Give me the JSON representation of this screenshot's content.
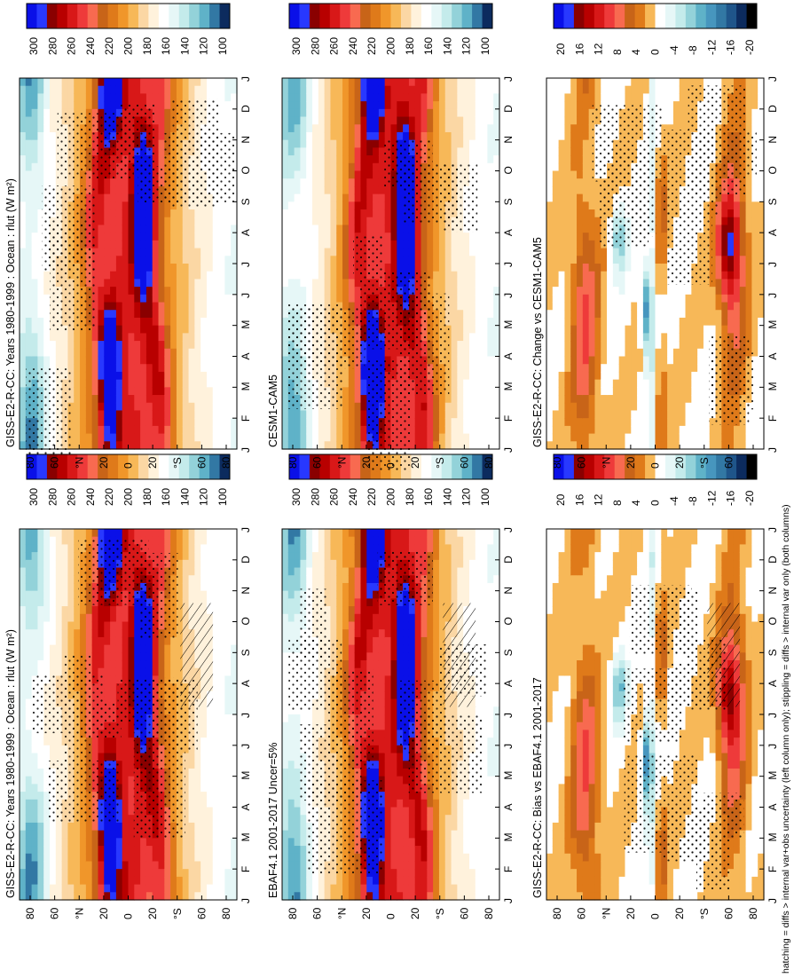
{
  "figure": {
    "footnote": "hatching = diffs > internal var+obs uncertainty (left column only); stippling = diffs > internal var only (both columns)"
  },
  "chart_data": [
    {
      "id": "p1",
      "type": "heatmap",
      "title": "GISS-E2-R-CC: Years 1980-1999 : Ocean : rlut (W m²)",
      "month_ticks": [
        "J",
        "F",
        "M",
        "A",
        "M",
        "J",
        "J",
        "A",
        "S",
        "O",
        "N",
        "D",
        "J"
      ],
      "lat_ticks": [
        "80",
        "60",
        "°N",
        "20",
        "0",
        "20",
        "°S",
        "60",
        "80"
      ],
      "lat_range": [
        -90,
        90
      ],
      "colorbar_labels": [
        "300",
        "280",
        "260",
        "240",
        "220",
        "200",
        "180",
        "160",
        "140",
        "120",
        "100"
      ],
      "pattern": "abs",
      "seed": 1,
      "hatch": true
    },
    {
      "id": "p2",
      "type": "heatmap",
      "title": "GISS-E2-R-CC: Years 1980-1999 : Ocean : rlut (W m²)",
      "month_ticks": [
        "J",
        "F",
        "M",
        "A",
        "M",
        "J",
        "J",
        "A",
        "S",
        "O",
        "N",
        "D",
        "J"
      ],
      "lat_ticks": [
        "80",
        "60",
        "°N",
        "20",
        "0",
        "20",
        "°S",
        "60",
        "80"
      ],
      "lat_range": [
        -90,
        90
      ],
      "colorbar_labels": [
        "300",
        "280",
        "260",
        "240",
        "220",
        "200",
        "180",
        "160",
        "140",
        "120",
        "100"
      ],
      "pattern": "abs",
      "seed": 2,
      "hatch": false
    },
    {
      "id": "p3",
      "type": "heatmap",
      "title": "EBAF4.1 2001-2017 Uncer=5%",
      "month_ticks": [
        "J",
        "F",
        "M",
        "A",
        "M",
        "J",
        "J",
        "A",
        "S",
        "O",
        "N",
        "D",
        "J"
      ],
      "lat_ticks": [
        "80",
        "60",
        "°N",
        "20",
        "0",
        "20",
        "°S",
        "60",
        "80"
      ],
      "lat_range": [
        -90,
        90
      ],
      "colorbar_labels": [
        "300",
        "280",
        "260",
        "240",
        "220",
        "200",
        "180",
        "160",
        "140",
        "120",
        "100"
      ],
      "pattern": "abs",
      "seed": 3,
      "hatch": true
    },
    {
      "id": "p4",
      "type": "heatmap",
      "title": "CESM1-CAM5",
      "month_ticks": [
        "J",
        "F",
        "M",
        "A",
        "M",
        "J",
        "J",
        "A",
        "S",
        "O",
        "N",
        "D",
        "J"
      ],
      "lat_ticks": [
        "80",
        "60",
        "°N",
        "20",
        "0",
        "20",
        "°S",
        "60",
        "80"
      ],
      "lat_range": [
        -90,
        90
      ],
      "colorbar_labels": [
        "300",
        "280",
        "260",
        "240",
        "220",
        "200",
        "180",
        "160",
        "140",
        "120",
        "100"
      ],
      "pattern": "abs",
      "seed": 4,
      "hatch": false
    },
    {
      "id": "p5",
      "type": "heatmap",
      "title": "GISS-E2-R-CC: Bias vs EBAF4.1 2001-2017",
      "month_ticks": [
        "J",
        "F",
        "M",
        "A",
        "M",
        "J",
        "J",
        "A",
        "S",
        "O",
        "N",
        "D",
        "J"
      ],
      "lat_ticks": [
        "80",
        "60",
        "°N",
        "20",
        "0",
        "20",
        "°S",
        "60",
        "80"
      ],
      "lat_range": [
        -90,
        90
      ],
      "colorbar_labels": [
        "20",
        "16",
        "12",
        "8",
        "4",
        "0",
        "-4",
        "-8",
        "-12",
        "-16",
        "-20"
      ],
      "pattern": "diff",
      "seed": 5,
      "hatch": true
    },
    {
      "id": "p6",
      "type": "heatmap",
      "title": "GISS-E2-R-CC: Change vs CESM1-CAM5",
      "month_ticks": [
        "J",
        "F",
        "M",
        "A",
        "M",
        "J",
        "J",
        "A",
        "S",
        "O",
        "N",
        "D",
        "J"
      ],
      "lat_ticks": [
        "80",
        "60",
        "°N",
        "20",
        "0",
        "20",
        "°S",
        "60",
        "80"
      ],
      "lat_range": [
        -90,
        90
      ],
      "colorbar_labels": [
        "20",
        "16",
        "12",
        "8",
        "4",
        "0",
        "-4",
        "-8",
        "-12",
        "-16",
        "-20"
      ],
      "pattern": "diff",
      "seed": 6,
      "hatch": false
    }
  ]
}
